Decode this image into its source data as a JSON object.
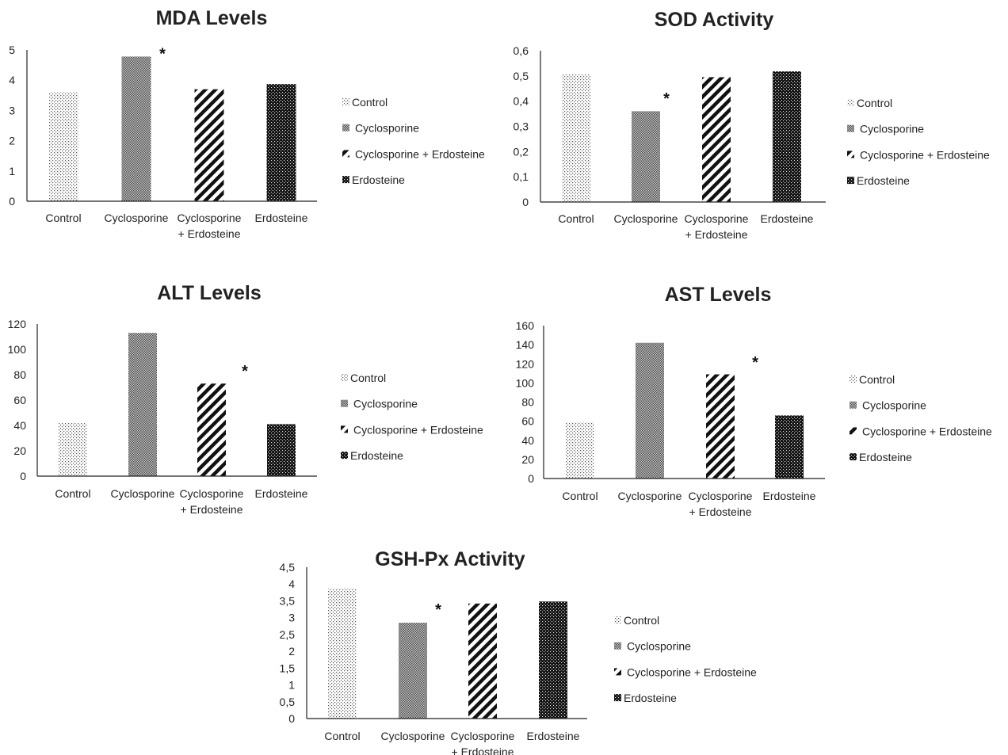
{
  "chart_data": [
    {
      "type": "bar",
      "title": "MDA Levels",
      "categories": [
        "Control",
        "Cyclosporine",
        "Cyclosporine + Erdosteine",
        "Erdosteine"
      ],
      "category_label_lines": [
        [
          "Control"
        ],
        [
          "Cyclosporine"
        ],
        [
          "Cyclosporine",
          "+ Erdosteine"
        ],
        [
          "Erdosteine"
        ]
      ],
      "values": [
        3.6,
        4.78,
        3.7,
        3.87
      ],
      "ylim": [
        0,
        5
      ],
      "ytick_labels": [
        "0",
        "1",
        "2",
        "3",
        "4",
        "5"
      ],
      "significance": {
        "category_index": 1,
        "mark": "*"
      },
      "legend": [
        "Control",
        "Cyclosporine",
        "Cyclosporine + Erdosteine",
        "Erdosteine"
      ],
      "legend_position": "right",
      "grid": false
    },
    {
      "type": "bar",
      "title": "SOD Activity",
      "categories": [
        "Control",
        "Cyclosporine",
        "Cyclosporine + Erdosteine",
        "Erdosteine"
      ],
      "category_label_lines": [
        [
          "Control"
        ],
        [
          "Cyclosporine"
        ],
        [
          "Cyclosporine",
          "+ Erdosteine"
        ],
        [
          "Erdosteine"
        ]
      ],
      "values": [
        0.508,
        0.36,
        0.495,
        0.518
      ],
      "ylim": [
        0,
        0.6
      ],
      "ytick_labels": [
        "0",
        "0,1",
        "0,2",
        "0,3",
        "0,4",
        "0,5",
        "0,6"
      ],
      "significance": {
        "category_index": 1,
        "mark": "*"
      },
      "legend": [
        "Control",
        "Cyclosporine",
        "Cyclosporine + Erdosteine",
        "Erdosteine"
      ],
      "legend_position": "right",
      "grid": false
    },
    {
      "type": "bar",
      "title": "ALT Levels",
      "categories": [
        "Control",
        "Cyclosporine",
        "Cyclosporine + Erdosteine",
        "Erdosteine"
      ],
      "category_label_lines": [
        [
          "Control"
        ],
        [
          "Cyclosporine"
        ],
        [
          "Cyclosporine",
          "+ Erdosteine"
        ],
        [
          "Erdosteine"
        ]
      ],
      "values": [
        42,
        113,
        73,
        41
      ],
      "ylim": [
        0,
        120
      ],
      "ytick_labels": [
        "0",
        "20",
        "40",
        "60",
        "80",
        "100",
        "120"
      ],
      "significance": {
        "category_index": 2,
        "mark": "*"
      },
      "legend": [
        "Control",
        "Cyclosporine",
        "Cyclosporine + Erdosteine",
        "Erdosteine"
      ],
      "legend_position": "right",
      "grid": false
    },
    {
      "type": "bar",
      "title": "AST Levels",
      "categories": [
        "Control",
        "Cyclosporine",
        "Cyclosporine + Erdosteine",
        "Erdosteine"
      ],
      "category_label_lines": [
        [
          "Control"
        ],
        [
          "Cyclosporine"
        ],
        [
          "Cyclosporine",
          "+ Erdosteine"
        ],
        [
          "Erdosteine"
        ]
      ],
      "values": [
        59,
        142,
        109,
        66
      ],
      "ylim": [
        0,
        160
      ],
      "ytick_labels": [
        "0",
        "20",
        "40",
        "60",
        "80",
        "100",
        "120",
        "140",
        "160"
      ],
      "significance": {
        "category_index": 2,
        "mark": "*"
      },
      "legend": [
        "Control",
        "Cyclosporine",
        "Cyclosporine + Erdosteine",
        "Erdosteine"
      ],
      "legend_position": "right",
      "grid": false
    },
    {
      "type": "bar",
      "title": "GSH-Px Activity",
      "categories": [
        "Control",
        "Cyclosporine",
        "Cyclosporine + Erdosteine",
        "Erdosteine"
      ],
      "category_label_lines": [
        [
          "Control"
        ],
        [
          "Cyclosporine"
        ],
        [
          "Cyclosporine",
          "+ Erdosteine"
        ],
        [
          "Erdosteine"
        ]
      ],
      "values": [
        3.87,
        2.85,
        3.42,
        3.48
      ],
      "ylim": [
        0,
        4.5
      ],
      "ytick_labels": [
        "0",
        "0,5",
        "1",
        "1,5",
        "2",
        "2,5",
        "3",
        "3,5",
        "4",
        "4,5"
      ],
      "significance": {
        "category_index": 1,
        "mark": "*"
      },
      "legend": [
        "Control",
        "Cyclosporine",
        "Cyclosporine + Erdosteine",
        "Erdosteine"
      ],
      "legend_position": "right",
      "grid": false
    }
  ]
}
